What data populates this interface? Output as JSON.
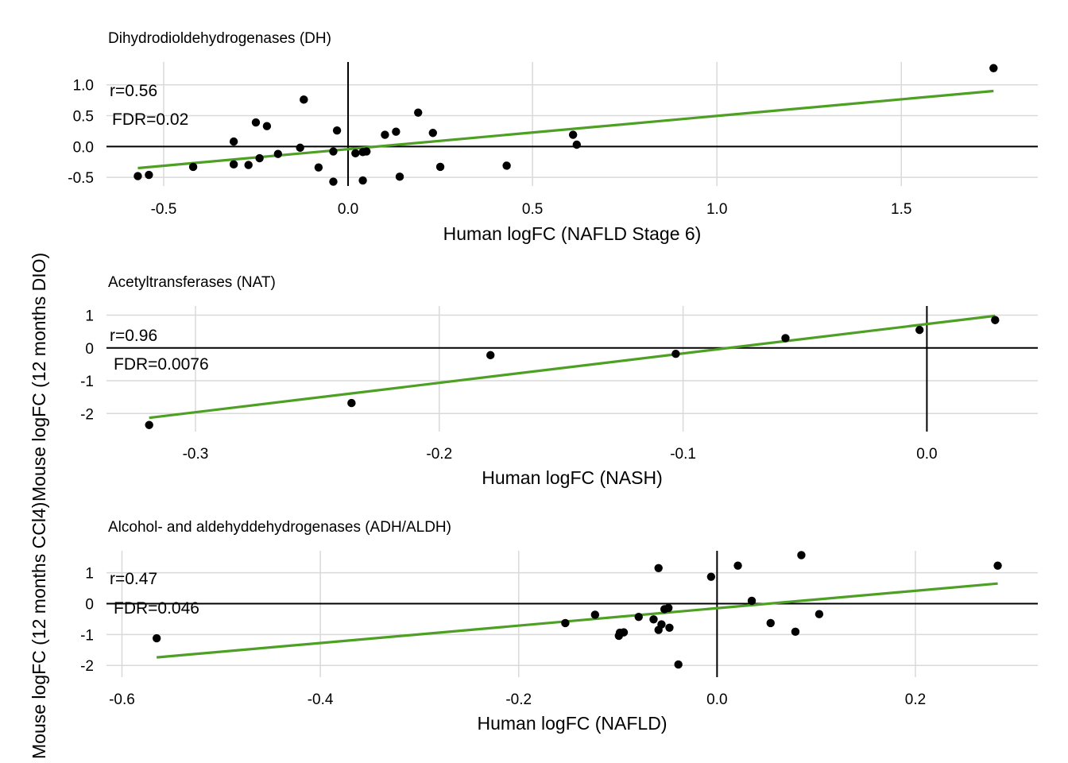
{
  "y_axis_label": "Mouse logFC (12 months CCl4)",
  "y_axis_label_overlap": "Mouse logFC (12 months DIO)",
  "colors": {
    "fit": "#4DA024",
    "point": "#000000",
    "grid": "#d9d9d9",
    "axis": "#000000"
  },
  "chart_data": [
    {
      "type": "scatter",
      "title": "Dihydrodioldehydrogenases (DH)",
      "xlabel": "Human logFC (NAFLD Stage 6)",
      "xlim": [
        -0.655,
        1.87
      ],
      "ylim": [
        -0.64,
        1.37
      ],
      "xticks": [
        -0.5,
        0.0,
        0.5,
        1.0,
        1.5
      ],
      "xtick_labels": [
        "-0.5",
        "0.0",
        "0.5",
        "1.0",
        "1.5"
      ],
      "yticks": [
        -0.5,
        0.0,
        0.5,
        1.0
      ],
      "ytick_labels": [
        "-0.5",
        "0.0",
        "0.5",
        "1.0"
      ],
      "annotations": {
        "r": "r=0.56",
        "fdr": "FDR=0.02"
      },
      "fit_line": {
        "x": [
          -0.57,
          1.75
        ],
        "y": [
          -0.35,
          0.9
        ]
      },
      "points": [
        [
          -0.57,
          -0.48
        ],
        [
          -0.54,
          -0.46
        ],
        [
          -0.42,
          -0.33
        ],
        [
          -0.31,
          0.08
        ],
        [
          -0.31,
          -0.29
        ],
        [
          -0.27,
          -0.3
        ],
        [
          -0.25,
          0.39
        ],
        [
          -0.24,
          -0.19
        ],
        [
          -0.22,
          0.33
        ],
        [
          -0.19,
          -0.12
        ],
        [
          -0.13,
          -0.02
        ],
        [
          -0.12,
          0.76
        ],
        [
          -0.08,
          -0.34
        ],
        [
          -0.04,
          -0.08
        ],
        [
          -0.04,
          -0.57
        ],
        [
          -0.03,
          0.26
        ],
        [
          0.02,
          -0.11
        ],
        [
          0.04,
          -0.09
        ],
        [
          0.04,
          -0.55
        ],
        [
          0.05,
          -0.08
        ],
        [
          0.1,
          0.19
        ],
        [
          0.13,
          0.24
        ],
        [
          0.14,
          -0.49
        ],
        [
          0.19,
          0.55
        ],
        [
          0.23,
          0.22
        ],
        [
          0.25,
          -0.33
        ],
        [
          0.43,
          -0.31
        ],
        [
          0.61,
          0.19
        ],
        [
          0.62,
          0.03
        ],
        [
          1.75,
          1.27
        ]
      ]
    },
    {
      "type": "scatter",
      "title": "Acetyltransferases (NAT)",
      "xlabel": "Human logFC (NASH)",
      "xlim": [
        -0.3365,
        0.0455
      ],
      "ylim": [
        -2.55,
        1.28
      ],
      "xticks": [
        -0.3,
        -0.2,
        -0.1,
        0.0
      ],
      "xtick_labels": [
        "-0.3",
        "-0.2",
        "-0.1",
        "0.0"
      ],
      "yticks": [
        -2,
        -1,
        0,
        1
      ],
      "ytick_labels": [
        "-2",
        "-1",
        "0",
        "1"
      ],
      "annotations": {
        "r": "r=0.96",
        "fdr": "FDR=0.0076"
      },
      "fit_line": {
        "x": [
          -0.319,
          0.028
        ],
        "y": [
          -2.13,
          0.98
        ]
      },
      "points": [
        [
          -0.319,
          -2.35
        ],
        [
          -0.236,
          -1.68
        ],
        [
          -0.179,
          -0.22
        ],
        [
          -0.103,
          -0.18
        ],
        [
          -0.058,
          0.3
        ],
        [
          -0.003,
          0.55
        ],
        [
          0.028,
          0.85
        ]
      ]
    },
    {
      "type": "scatter",
      "title": "Alcohol- and aldehyddehydrogenases (ADH/ALDH)",
      "xlabel": "Human logFC (NAFLD)",
      "xlim": [
        -0.6156,
        0.3234
      ],
      "ylim": [
        -2.38,
        1.71
      ],
      "xticks": [
        -0.6,
        -0.4,
        -0.2,
        0.0,
        0.2
      ],
      "xtick_labels": [
        "-0.6",
        "-0.4",
        "-0.2",
        "0.0",
        "0.2"
      ],
      "yticks": [
        -2,
        -1,
        0,
        1
      ],
      "ytick_labels": [
        "-2",
        "-1",
        "0",
        "1"
      ],
      "annotations": {
        "r": "r=0.47",
        "fdr": "FDR=0.046"
      },
      "fit_line": {
        "x": [
          -0.565,
          0.283
        ],
        "y": [
          -1.74,
          0.65
        ]
      },
      "points": [
        [
          -0.565,
          -1.12
        ],
        [
          -0.153,
          -0.63
        ],
        [
          -0.123,
          -0.36
        ],
        [
          -0.099,
          -1.04
        ],
        [
          -0.098,
          -0.94
        ],
        [
          -0.094,
          -0.93
        ],
        [
          -0.079,
          -0.43
        ],
        [
          -0.064,
          -0.51
        ],
        [
          -0.059,
          1.15
        ],
        [
          -0.059,
          -0.85
        ],
        [
          -0.056,
          -0.67
        ],
        [
          -0.053,
          -0.18
        ],
        [
          -0.049,
          -0.14
        ],
        [
          -0.048,
          -0.78
        ],
        [
          -0.039,
          -1.97
        ],
        [
          -0.006,
          0.87
        ],
        [
          0.021,
          1.23
        ],
        [
          0.035,
          0.09
        ],
        [
          0.054,
          -0.63
        ],
        [
          0.079,
          -0.91
        ],
        [
          0.085,
          1.57
        ],
        [
          0.103,
          -0.34
        ],
        [
          0.283,
          1.23
        ]
      ]
    }
  ]
}
